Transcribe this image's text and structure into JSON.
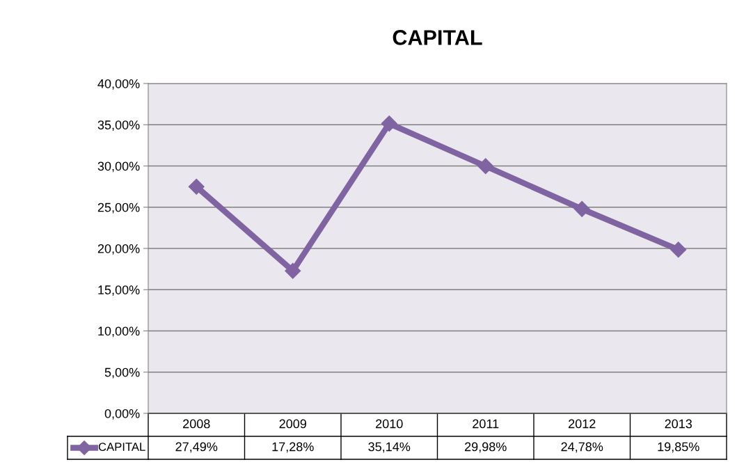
{
  "chart_data": {
    "type": "line",
    "title": "CAPITAL",
    "categories": [
      "2008",
      "2009",
      "2010",
      "2011",
      "2012",
      "2013"
    ],
    "series": [
      {
        "name": "CAPITAL",
        "color": "#8064a2",
        "values": [
          27.49,
          17.28,
          35.14,
          29.98,
          24.78,
          19.85
        ],
        "value_labels": [
          "27,49%",
          "17,28%",
          "35,14%",
          "29,98%",
          "24,78%",
          "19,85%"
        ]
      }
    ],
    "ylim": [
      0,
      40
    ],
    "yticks": [
      {
        "value": 0,
        "label": "0,00%"
      },
      {
        "value": 5,
        "label": "5,00%"
      },
      {
        "value": 10,
        "label": "10,00%"
      },
      {
        "value": 15,
        "label": "15,00%"
      },
      {
        "value": 20,
        "label": "20,00%"
      },
      {
        "value": 25,
        "label": "25,00%"
      },
      {
        "value": 30,
        "label": "30,00%"
      },
      {
        "value": 35,
        "label": "35,00%"
      },
      {
        "value": 40,
        "label": "40,00%"
      }
    ],
    "grid": "y",
    "legend": "bottom",
    "marker": "diamond",
    "line_style": "solid"
  }
}
